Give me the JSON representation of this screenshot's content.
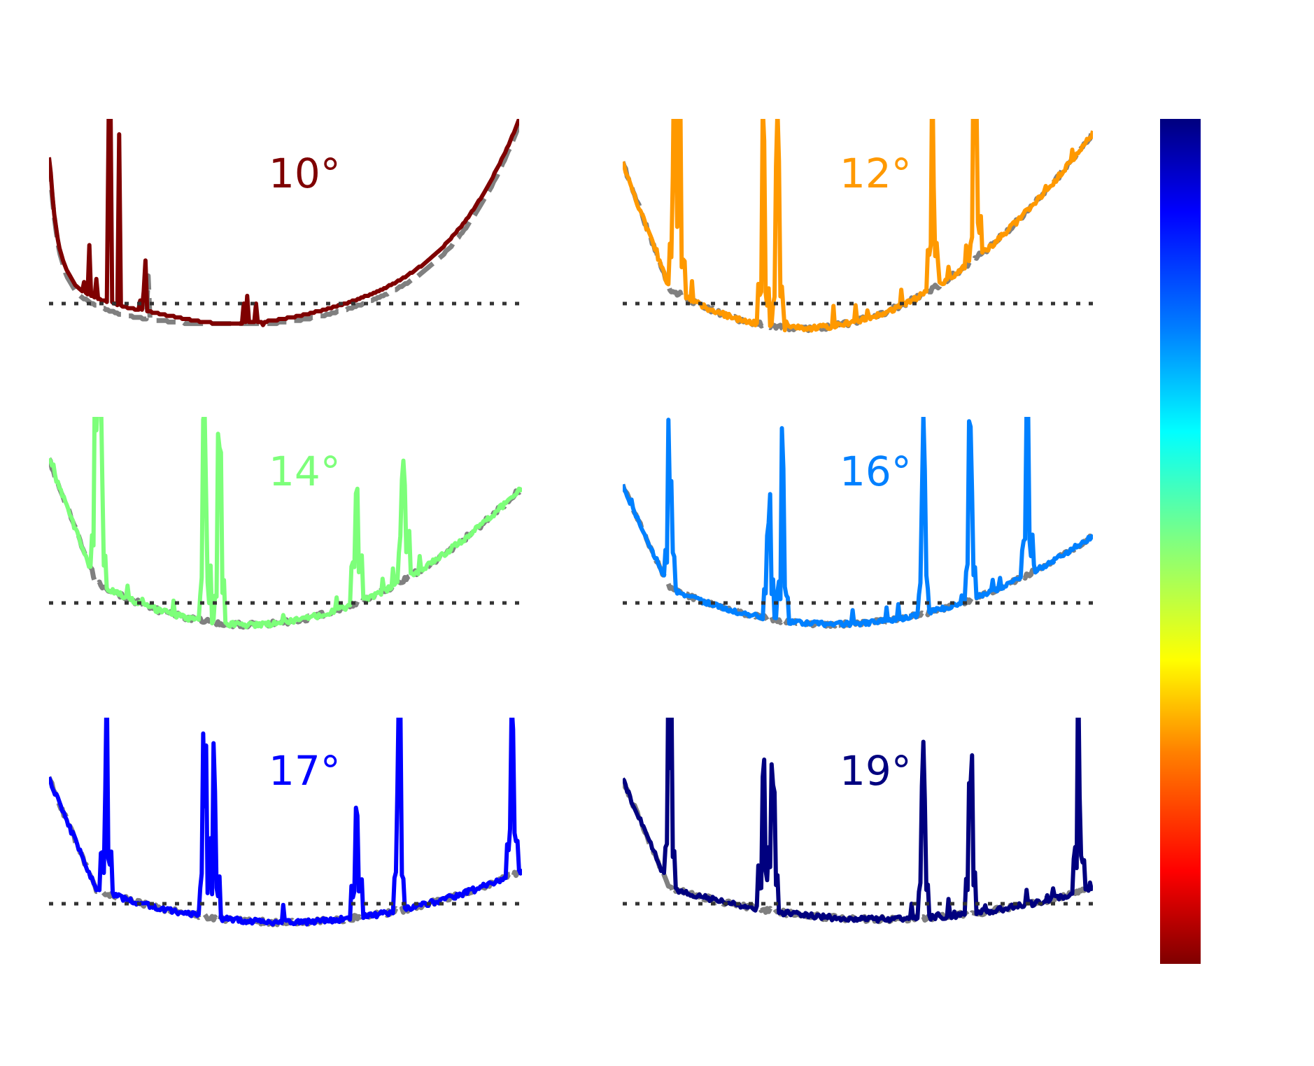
{
  "figure": {
    "layout": "3 rows x 2 columns grid of small-multiple line plots with a vertical colorbar on the right",
    "axes_visible": false,
    "colorbar": {
      "orientation": "vertical",
      "colormap": "jet",
      "ticks_visible": false,
      "top_color": "#00007f",
      "bottom_color": "#7f0000"
    }
  },
  "chart_data": [
    {
      "type": "line",
      "label": "10°",
      "color": "#7f0000",
      "reference_line": {
        "style": "dotted",
        "color": "#333333",
        "y": 1.0
      },
      "series": [
        {
          "role": "data",
          "style": "solid",
          "color": "#7f0000",
          "values": [
            1.95,
            1.85,
            1.7,
            1.58,
            1.5,
            1.42,
            1.36,
            1.32,
            1.28,
            1.25,
            1.22,
            1.2,
            1.18,
            1.16,
            1.14,
            1.12,
            1.11,
            1.1,
            1.09,
            1.08,
            1.14,
            1.07,
            1.06,
            1.38,
            1.05,
            1.05,
            1.04,
            1.16,
            1.03,
            1.03,
            1.02,
            1.02,
            1.02,
            1.01,
            2.2,
            2.4,
            1.01,
            1.0,
            1.0,
            0.99,
            2.1,
            0.99,
            0.98,
            0.98,
            0.98,
            0.97,
            0.97,
            0.97,
            0.97,
            0.96,
            0.96,
            0.96,
            1.02,
            0.96,
            1.08,
            1.28,
            0.95,
            0.95,
            0.95,
            0.94,
            0.94,
            0.94,
            0.94,
            0.93,
            0.93,
            0.93,
            0.93,
            0.92,
            0.92,
            0.92,
            0.92,
            0.92,
            0.91,
            0.91,
            0.91,
            0.91,
            0.9,
            0.9,
            0.9,
            0.9,
            0.9,
            0.89,
            0.89,
            0.89,
            0.89,
            0.89,
            0.88,
            0.88,
            0.88,
            0.88,
            0.88,
            0.88,
            0.88,
            0.87,
            0.87,
            0.87,
            0.87,
            0.87,
            0.87,
            0.87,
            0.87,
            0.87,
            0.87,
            0.87,
            0.87,
            0.87,
            0.87,
            0.87,
            0.87,
            0.87,
            0.87,
            1.0,
            0.88,
            1.05,
            0.88,
            0.88,
            0.88,
            0.88,
            1.0,
            0.88,
            0.88,
            0.88,
            0.86,
            0.88,
            0.88,
            0.89,
            0.89,
            0.89,
            0.89,
            0.89,
            0.89,
            0.9,
            0.9,
            0.9,
            0.9,
            0.9,
            0.91,
            0.91,
            0.91,
            0.91,
            0.91,
            0.92,
            0.92,
            0.92,
            0.92,
            0.93,
            0.93,
            0.93,
            0.93,
            0.94,
            0.94,
            0.94,
            0.95,
            0.95,
            0.95,
            0.95,
            0.96,
            0.96,
            0.96,
            0.97,
            0.97,
            0.97,
            0.98,
            0.98,
            0.98,
            0.99,
            0.99,
            0.99,
            1.0,
            1.0,
            1.0,
            1.01,
            1.01,
            1.02,
            1.02,
            1.02,
            1.03,
            1.03,
            1.04,
            1.04,
            1.05,
            1.05,
            1.05,
            1.06,
            1.06,
            1.07,
            1.07,
            1.08,
            1.08,
            1.09,
            1.09,
            1.1,
            1.1,
            1.11,
            1.12,
            1.12,
            1.13,
            1.13,
            1.14,
            1.15,
            1.15,
            1.16,
            1.17,
            1.17,
            1.18,
            1.19,
            1.2,
            1.2,
            1.21,
            1.22,
            1.23,
            1.24,
            1.24,
            1.25,
            1.26,
            1.27,
            1.28,
            1.29,
            1.3,
            1.31,
            1.32,
            1.33,
            1.34,
            1.35,
            1.36,
            1.37,
            1.39,
            1.4,
            1.41,
            1.42,
            1.44,
            1.45,
            1.46,
            1.48,
            1.49,
            1.5,
            1.52,
            1.53,
            1.55,
            1.56,
            1.58,
            1.6,
            1.61,
            1.63,
            1.65,
            1.67,
            1.68,
            1.7,
            1.72,
            1.74,
            1.76,
            1.78,
            1.8,
            1.82,
            1.85,
            1.87,
            1.89,
            1.91,
            1.94,
            1.96,
            1.98,
            2.01,
            2.03,
            2.06,
            2.09,
            2.11,
            2.14,
            2.17,
            2.2
          ]
        },
        {
          "role": "reference",
          "style": "dashed",
          "color": "#808080",
          "values": [
            1.92,
            1.8,
            1.66,
            1.55,
            1.46,
            1.38,
            1.32,
            1.28,
            1.24,
            1.2,
            1.17,
            1.15,
            1.13,
            1.11,
            1.09,
            1.07,
            1.06,
            1.05,
            1.04,
            1.03,
            1.03,
            1.02,
            1.01,
            1.0,
            1.0,
            0.99,
            0.99,
            0.98,
            0.98,
            0.97,
            0.97,
            0.96,
            0.96,
            0.95,
            0.95,
            0.95,
            0.94,
            0.94,
            0.93,
            0.93,
            0.93,
            0.93,
            0.92,
            0.92,
            0.92,
            0.92,
            0.91,
            0.91,
            0.91,
            0.91,
            0.91,
            0.9,
            0.9,
            0.9,
            1.18,
            0.9,
            0.9,
            0.9,
            0.89,
            0.89,
            0.89,
            0.89,
            0.89,
            0.89,
            0.89,
            0.88,
            0.88,
            0.88,
            0.88,
            0.88,
            0.88,
            0.88,
            0.88,
            0.88,
            0.87,
            0.87,
            0.87,
            0.87,
            0.87,
            0.87,
            0.87,
            0.87,
            0.87,
            0.87,
            0.87,
            0.87,
            0.87,
            0.87,
            0.87,
            0.87,
            0.87,
            0.87,
            0.87,
            0.87,
            0.87,
            0.87,
            0.87,
            0.87,
            0.87,
            0.87,
            0.87,
            0.87,
            0.87,
            0.87,
            0.87,
            0.87,
            0.87,
            0.87,
            0.87,
            0.87,
            0.87,
            0.87,
            0.87,
            0.87,
            0.87,
            0.87,
            0.87,
            0.87,
            0.87,
            0.87,
            0.87,
            0.87,
            0.87,
            0.87,
            0.87,
            0.88,
            0.88,
            0.88,
            0.88,
            0.88,
            0.88,
            0.88,
            0.89,
            0.89,
            0.89,
            0.89,
            0.89,
            0.89,
            0.9,
            0.9,
            0.9,
            0.9,
            0.9,
            0.91,
            0.91,
            0.91,
            0.91,
            0.92,
            0.92,
            0.92,
            0.92,
            0.93,
            0.93,
            0.93,
            0.94,
            0.94,
            0.94,
            0.95,
            0.95,
            0.95,
            0.96,
            0.96,
            0.96,
            0.97,
            0.97,
            0.97,
            0.98,
            0.98,
            0.99,
            0.99,
            0.99,
            1.0,
            1.0,
            1.01,
            1.01,
            1.02,
            1.02,
            1.03,
            1.03,
            1.04,
            1.04,
            1.05,
            1.05,
            1.06,
            1.06,
            1.07,
            1.07,
            1.08,
            1.09,
            1.09,
            1.1,
            1.11,
            1.11,
            1.12,
            1.13,
            1.13,
            1.14,
            1.15,
            1.16,
            1.16,
            1.17,
            1.18,
            1.19,
            1.2,
            1.21,
            1.22,
            1.23,
            1.24,
            1.25,
            1.26,
            1.27,
            1.28,
            1.29,
            1.3,
            1.31,
            1.32,
            1.34,
            1.35,
            1.36,
            1.37,
            1.39,
            1.4,
            1.42,
            1.43,
            1.45,
            1.46,
            1.48,
            1.49,
            1.51,
            1.53,
            1.54,
            1.56,
            1.58,
            1.6,
            1.62,
            1.64,
            1.66,
            1.68,
            1.7,
            1.72,
            1.74,
            1.76,
            1.79,
            1.81,
            1.83,
            1.86,
            1.88,
            1.91,
            1.93,
            1.96,
            1.99,
            2.01,
            2.04,
            2.07,
            2.1,
            2.13,
            2.16
          ]
        }
      ]
    },
    {
      "type": "line",
      "label": "12°",
      "color": "#ff9900",
      "reference_line": {
        "style": "dotted",
        "color": "#333333",
        "y": 1.0
      },
      "series": [
        {
          "role": "data",
          "style": "solid",
          "color": "#ff9900",
          "shape": "u-curve",
          "spikes": "frequent"
        },
        {
          "role": "reference",
          "style": "dashed",
          "color": "#808080",
          "shape": "u-curve"
        }
      ]
    },
    {
      "type": "line",
      "label": "14°",
      "color": "#7dff7a",
      "reference_line": {
        "style": "dotted",
        "color": "#333333",
        "y": 1.0
      },
      "series": [
        {
          "role": "data",
          "style": "solid",
          "color": "#7dff7a",
          "shape": "u-curve",
          "spikes": "frequent"
        },
        {
          "role": "reference",
          "style": "dashed",
          "color": "#808080",
          "shape": "u-curve"
        }
      ]
    },
    {
      "type": "line",
      "label": "16°",
      "color": "#0080ff",
      "reference_line": {
        "style": "dotted",
        "color": "#333333",
        "y": 1.0
      },
      "series": [
        {
          "role": "data",
          "style": "solid",
          "color": "#0080ff",
          "shape": "u-curve",
          "spikes": "frequent"
        },
        {
          "role": "reference",
          "style": "dashed",
          "color": "#808080",
          "shape": "u-curve"
        }
      ]
    },
    {
      "type": "line",
      "label": "17°",
      "color": "#0000ff",
      "reference_line": {
        "style": "dotted",
        "color": "#333333",
        "y": 1.0
      },
      "series": [
        {
          "role": "data",
          "style": "solid",
          "color": "#0000ff",
          "shape": "u-curve",
          "spikes": "frequent"
        },
        {
          "role": "reference",
          "style": "dashed",
          "color": "#808080",
          "shape": "u-curve"
        }
      ]
    },
    {
      "type": "line",
      "label": "19°",
      "color": "#00007f",
      "reference_line": {
        "style": "dotted",
        "color": "#333333",
        "y": 1.0
      },
      "series": [
        {
          "role": "data",
          "style": "solid",
          "color": "#00007f",
          "shape": "u-curve",
          "spikes": "frequent"
        },
        {
          "role": "reference",
          "style": "dashed",
          "color": "#808080",
          "shape": "u-curve"
        }
      ]
    }
  ]
}
